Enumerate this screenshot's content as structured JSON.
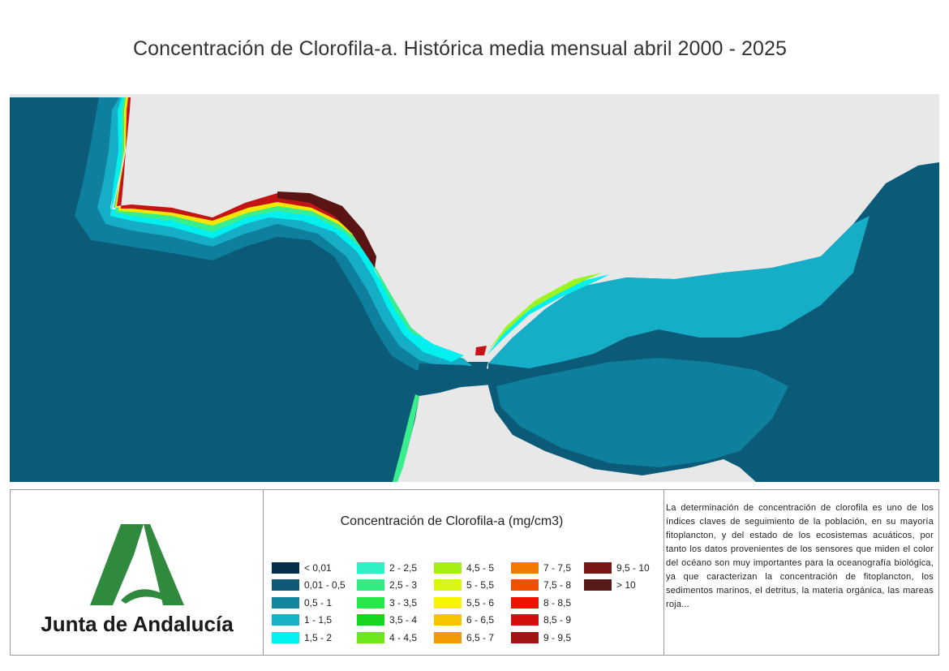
{
  "title": "Concentración de Clorofila-a. Histórica media mensual abril 2000 - 2025",
  "map": {
    "colors": {
      "land": "#e8e8e8",
      "deep_ocean": "#0a5a78",
      "open_sea": "#0e7f9c",
      "shelf": "#16aec6",
      "coastal_1": "#00f0f0",
      "coastal_2": "#3aee8e",
      "coastal_3": "#9af51e",
      "coastal_4": "#f5e600",
      "coastal_5": "#f08c00",
      "coastal_6": "#c41414",
      "coastal_7": "#5a1414"
    }
  },
  "logo": {
    "text": "Junta de Andalucía",
    "icon": "junta-de-andalucia-logo-icon",
    "color": "#2f8a3e"
  },
  "legend": {
    "title": "Concentración de Clorofila-a (mg/cm3)",
    "columns": [
      [
        {
          "label": "< 0,01",
          "color": "#06304c"
        },
        {
          "label": "0,01 - 0,5",
          "color": "#0d5a78"
        },
        {
          "label": "0,5 - 1",
          "color": "#12869e"
        },
        {
          "label": "1 - 1,5",
          "color": "#18b2c8"
        },
        {
          "label": "1,5 - 2",
          "color": "#00f2f2"
        }
      ],
      [
        {
          "label": "2 - 2,5",
          "color": "#2ef0c4"
        },
        {
          "label": "2,5 - 3",
          "color": "#30ec82"
        },
        {
          "label": "3 - 3,5",
          "color": "#28e64a"
        },
        {
          "label": "3,5 - 4",
          "color": "#16d61e"
        },
        {
          "label": "4 - 4,5",
          "color": "#6ee81a"
        }
      ],
      [
        {
          "label": "4,5 - 5",
          "color": "#a6ee14"
        },
        {
          "label": "5 - 5,5",
          "color": "#d8f612"
        },
        {
          "label": "5,5 - 6",
          "color": "#f8f400"
        },
        {
          "label": "6 - 6,5",
          "color": "#f6c400"
        },
        {
          "label": "6,5 - 7",
          "color": "#f49a00"
        }
      ],
      [
        {
          "label": "7 - 7,5",
          "color": "#f27a00"
        },
        {
          "label": "7,5 - 8",
          "color": "#f25000"
        },
        {
          "label": "8 - 8,5",
          "color": "#ee1200"
        },
        {
          "label": "8,5 - 9",
          "color": "#d20e0e"
        },
        {
          "label": "9 - 9,5",
          "color": "#a21414"
        }
      ],
      [
        {
          "label": "9,5 - 10",
          "color": "#781818"
        },
        {
          "label": "> 10",
          "color": "#561a1a"
        }
      ]
    ]
  },
  "description": "La determinación de concentración de clorofila es uno de los índices claves de seguimiento de la población, en su mayoría fitoplancton, y del estado de los ecosistemas acuáticos, por tanto los datos provenientes de los sensores que miden el color del océano son muy importantes para la oceanografía biológica, ya que caracterizan la concentración de fitoplancton, los sedimentos marinos, el detritus, la materia orgánica, las mareas roja..."
}
